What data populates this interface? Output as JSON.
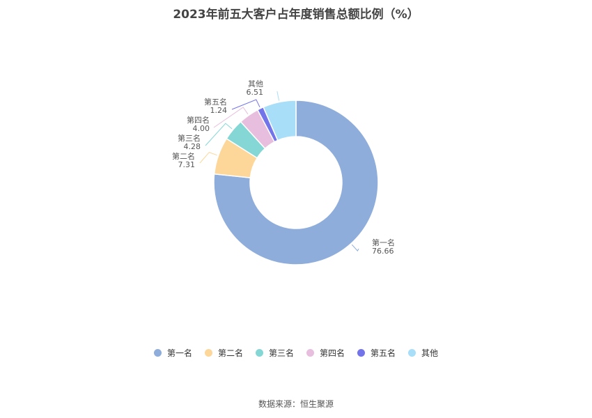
{
  "chart_data": {
    "type": "pie",
    "title": "2023年前五大客户占年度销售总额比例（%）",
    "categories": [
      "第一名",
      "第二名",
      "第三名",
      "第四名",
      "第五名",
      "其他"
    ],
    "values": [
      76.66,
      7.31,
      4.28,
      4.0,
      1.24,
      6.51
    ],
    "value_labels": [
      "76.66",
      "7.31",
      "4.28",
      "4.00",
      "1.24",
      "6.51"
    ],
    "colors": [
      "#8eaddb",
      "#fdd79a",
      "#85d7d6",
      "#e8bede",
      "#7373ea",
      "#a8def8"
    ],
    "legend_position": "bottom",
    "style": "donut"
  },
  "source": "数据来源：恒生聚源"
}
